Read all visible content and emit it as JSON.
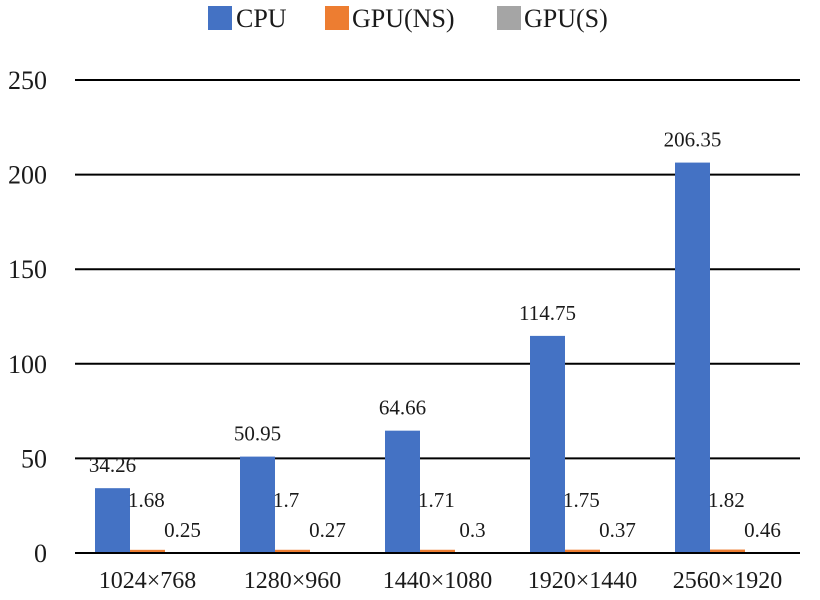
{
  "chart_data": {
    "type": "bar",
    "categories": [
      "1024×768",
      "1280×960",
      "1440×1080",
      "1920×1440",
      "2560×1920"
    ],
    "series": [
      {
        "name": "CPU",
        "color": "#4472C4",
        "values": [
          34.26,
          50.95,
          64.66,
          114.75,
          206.35
        ]
      },
      {
        "name": "GPU(NS)",
        "color": "#ED7D31",
        "values": [
          1.68,
          1.7,
          1.71,
          1.75,
          1.82
        ]
      },
      {
        "name": "GPU(S)",
        "color": "#A5A5A5",
        "values": [
          0.25,
          0.27,
          0.3,
          0.37,
          0.46
        ]
      }
    ],
    "value_labels": [
      [
        "34.26",
        "50.95",
        "64.66",
        "114.75",
        "206.35"
      ],
      [
        "1.68",
        "1.7",
        "1.71",
        "1.75",
        "1.82"
      ],
      [
        "0.25",
        "0.27",
        "0.3",
        "0.37",
        "0.46"
      ]
    ],
    "y_ticks": [
      "0",
      "50",
      "100",
      "150",
      "200",
      "250"
    ],
    "ylim": [
      0,
      250
    ],
    "grid": true,
    "legend_position": "top-center",
    "title": "",
    "xlabel": "",
    "ylabel": ""
  }
}
